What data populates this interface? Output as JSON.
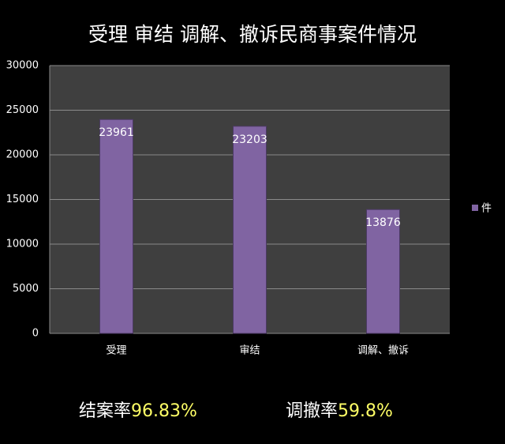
{
  "chart_data": {
    "type": "bar",
    "title": "受理 审结 调解、撤诉民商事案件情况",
    "categories": [
      "受理",
      "审结",
      "调解、撤诉"
    ],
    "series": [
      {
        "name": "件",
        "color": "#8064a2",
        "values": [
          23961,
          23203,
          13876
        ]
      }
    ],
    "ylim": [
      0,
      30000
    ],
    "yticks": [
      0,
      5000,
      10000,
      15000,
      20000,
      25000,
      30000
    ],
    "grid": true,
    "legend": "right",
    "annotations": [
      {
        "label": "结案率",
        "value": "96.83%"
      },
      {
        "label": "调撤率",
        "value": "59.8%"
      }
    ]
  }
}
